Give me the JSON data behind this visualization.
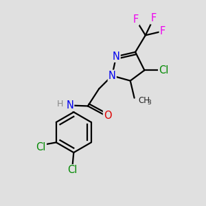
{
  "background_color": "#e0e0e0",
  "bond_color": "#000000",
  "bond_width": 1.6,
  "atom_colors": {
    "N": "#0000ee",
    "O": "#dd0000",
    "F": "#ee00ee",
    "Cl": "#008800",
    "H": "#888888"
  },
  "font_size_atom": 10.5,
  "font_size_small": 9.0
}
